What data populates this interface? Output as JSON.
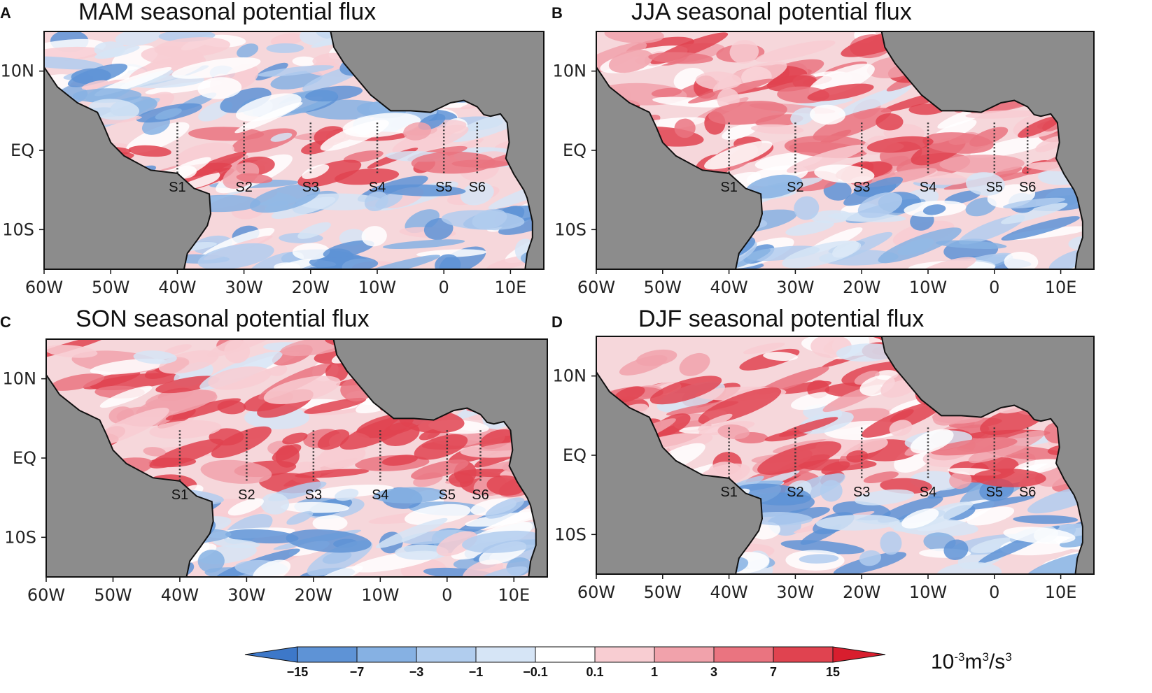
{
  "figure": {
    "units_main": "10",
    "units_exp": "-3",
    "units_rest": "m",
    "units_exp2": "3",
    "units_slash": "/s",
    "units_exp3": "3",
    "colors": {
      "land": "#8c8c8c",
      "coast": "#111111",
      "station_line": "#333333",
      "background": "#ffffff"
    }
  },
  "panels": [
    {
      "letter": "A",
      "title": "MAM seasonal potential flux"
    },
    {
      "letter": "B",
      "title": "JJA seasonal potential flux"
    },
    {
      "letter": "C",
      "title": "SON seasonal potential flux"
    },
    {
      "letter": "D",
      "title": "DJF seasonal potential flux"
    }
  ],
  "axes": {
    "lon_ticks": [
      "60W",
      "50W",
      "40W",
      "30W",
      "20W",
      "10W",
      "0",
      "10E"
    ],
    "lon_values": [
      -60,
      -50,
      -40,
      -30,
      -20,
      -10,
      0,
      10
    ],
    "lat_ticks": [
      "10N",
      "EQ",
      "10S"
    ],
    "lat_values": [
      10,
      0,
      -10
    ],
    "lon_range": [
      -60,
      15
    ],
    "lat_range": [
      -15,
      15
    ]
  },
  "stations": [
    {
      "name": "S1",
      "lon": -40
    },
    {
      "name": "S2",
      "lon": -30
    },
    {
      "name": "S3",
      "lon": -20
    },
    {
      "name": "S4",
      "lon": -10
    },
    {
      "name": "S5",
      "lon": 0
    },
    {
      "name": "S6",
      "lon": 5
    }
  ],
  "colorbar": {
    "labels": [
      "−15",
      "−7",
      "−3",
      "−1",
      "−0.1",
      "0.1",
      "1",
      "3",
      "7",
      "15"
    ],
    "colors": [
      "#3d78c9",
      "#5e93d6",
      "#86b1e3",
      "#b1cdee",
      "#d6e5f6",
      "#ffffff",
      "#f8cdd2",
      "#f1a2ab",
      "#ea7480",
      "#e04350",
      "#d81e2e"
    ]
  }
}
